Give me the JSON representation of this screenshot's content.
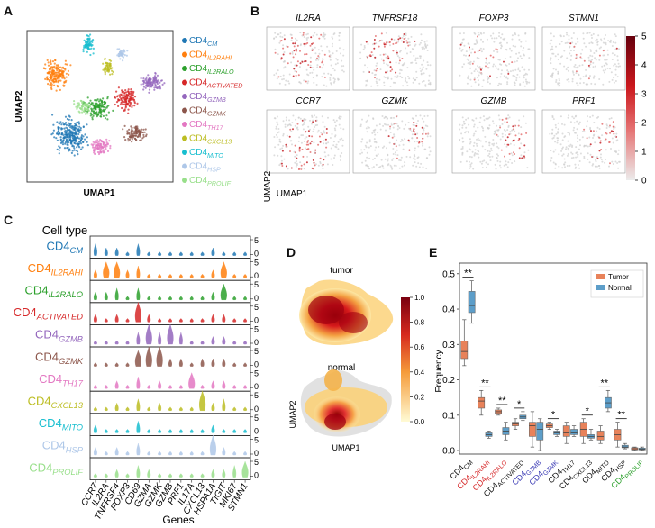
{
  "panels": {
    "a": "A",
    "b": "B",
    "c": "C",
    "d": "D",
    "e": "E"
  },
  "clusters": [
    {
      "name": "CM",
      "color": "#1f77b4"
    },
    {
      "name": "IL2RAHI",
      "color": "#ff7f0e"
    },
    {
      "name": "IL2RALO",
      "color": "#2ca02c"
    },
    {
      "name": "ACTIVATED",
      "color": "#d62728"
    },
    {
      "name": "GZMB",
      "color": "#9467bd"
    },
    {
      "name": "GZMK",
      "color": "#8c564b"
    },
    {
      "name": "TH17",
      "color": "#e377c2"
    },
    {
      "name": "CXCL13",
      "color": "#bcbd22"
    },
    {
      "name": "MITO",
      "color": "#17becf"
    },
    {
      "name": "HSP",
      "color": "#aec7e8"
    },
    {
      "name": "PROLIF",
      "color": "#98df8a"
    }
  ],
  "cd4": "CD4",
  "umap_a": {
    "xlabel": "UMAP1",
    "ylabel": "UMAP2"
  },
  "panel_b": {
    "genes": [
      "IL2RA",
      "TNFRSF18",
      "FOXP3",
      "STMN1",
      "CCR7",
      "GZMK",
      "GZMB",
      "PRF1"
    ],
    "xlabel": "UMAP1",
    "ylabel": "UMAP2",
    "colorbar_ticks": [
      "5",
      "4",
      "3",
      "2",
      "1",
      "0"
    ]
  },
  "panel_c": {
    "title": "Cell type",
    "xlabel": "Genes",
    "genes": [
      "CCR7",
      "IL2RA",
      "TNFRSF4",
      "FOXP3",
      "CD69",
      "GZMA",
      "GZMK",
      "GZMB",
      "PRF1",
      "IL17A",
      "CXCL13",
      "HSPA1A",
      "TIGIT",
      "MKI67",
      "STMN1"
    ],
    "scale_max": "5",
    "scale_min": "0",
    "expression": [
      [
        2,
        1,
        1,
        0,
        2,
        0,
        0,
        0,
        0,
        0,
        0,
        1,
        0,
        0,
        0
      ],
      [
        1,
        3,
        3,
        1,
        2,
        0,
        0,
        0,
        0,
        0,
        0,
        1,
        3,
        0,
        0
      ],
      [
        1,
        1,
        2,
        0,
        2,
        0,
        0,
        0,
        0,
        0,
        0,
        1,
        3,
        0,
        0
      ],
      [
        1,
        0,
        1,
        0,
        4,
        1,
        0,
        0,
        0,
        0,
        0,
        1,
        1,
        0,
        0
      ],
      [
        0,
        0,
        0,
        0,
        2,
        4,
        2,
        4,
        2,
        0,
        0,
        1,
        1,
        0,
        0
      ],
      [
        0,
        0,
        0,
        0,
        3,
        4,
        4,
        1,
        1,
        0,
        1,
        1,
        1,
        0,
        0
      ],
      [
        0,
        0,
        1,
        0,
        2,
        0,
        1,
        0,
        0,
        3,
        0,
        1,
        1,
        0,
        0
      ],
      [
        0,
        0,
        1,
        0,
        2,
        0,
        1,
        0,
        0,
        0,
        4,
        1,
        2,
        0,
        0
      ],
      [
        1,
        0,
        0,
        0,
        2,
        0,
        0,
        0,
        0,
        0,
        0,
        1,
        0,
        0,
        0
      ],
      [
        1,
        0,
        1,
        0,
        2,
        0,
        0,
        0,
        0,
        0,
        0,
        4,
        1,
        0,
        0
      ],
      [
        0,
        0,
        1,
        0,
        2,
        1,
        0,
        0,
        0,
        0,
        0,
        1,
        1,
        2,
        3
      ]
    ]
  },
  "panel_d": {
    "tumor": "tumor",
    "normal": "normal",
    "xlabel": "UMAP1",
    "ylabel": "UMAP2",
    "colorbar_ticks": [
      "1.0",
      "0.8",
      "0.6",
      "0.4",
      "0.2",
      "0.0"
    ]
  },
  "chart_data": {
    "type": "box",
    "ylabel": "Frequency",
    "ylim": [
      -0.01,
      0.53
    ],
    "yticks": [
      "0.0",
      "0.1",
      "0.2",
      "0.3",
      "0.4",
      "0.5"
    ],
    "legend": [
      "Tumor",
      "Normal"
    ],
    "legend_position": "top-right",
    "colors": {
      "Tumor": "#e8825a",
      "Normal": "#5d9ec9"
    },
    "categories": [
      "CM",
      "IL2RAHI",
      "IL2RALO",
      "ACTIVATED",
      "GZMB",
      "GZMK",
      "TH17",
      "CXCL13",
      "MITO",
      "HSP",
      "PROLIF"
    ],
    "category_label_colors": [
      "#111",
      "#d62728",
      "#d62728",
      "#111",
      "#3a3ab5",
      "#3a3ab5",
      "#111",
      "#111",
      "#111",
      "#111",
      "#2ca02c"
    ],
    "significance": [
      "**",
      "**",
      "**",
      "*",
      "",
      "*",
      "",
      "*",
      "**",
      "**",
      ""
    ],
    "series": [
      {
        "name": "Tumor",
        "boxes": [
          [
            0.24,
            0.26,
            0.28,
            0.31,
            0.37
          ],
          [
            0.1,
            0.12,
            0.14,
            0.15,
            0.17
          ],
          [
            0.1,
            0.105,
            0.11,
            0.115,
            0.12
          ],
          [
            0.06,
            0.07,
            0.075,
            0.08,
            0.09
          ],
          [
            0.01,
            0.04,
            0.07,
            0.08,
            0.11
          ],
          [
            0.06,
            0.065,
            0.07,
            0.075,
            0.08
          ],
          [
            0.02,
            0.04,
            0.05,
            0.07,
            0.08
          ],
          [
            0.02,
            0.04,
            0.06,
            0.08,
            0.09
          ],
          [
            0.02,
            0.03,
            0.04,
            0.055,
            0.07
          ],
          [
            0.01,
            0.03,
            0.045,
            0.06,
            0.08
          ],
          [
            0.0,
            0.002,
            0.005,
            0.008,
            0.01
          ]
        ]
      },
      {
        "name": "Normal",
        "boxes": [
          [
            0.36,
            0.39,
            0.41,
            0.45,
            0.48
          ],
          [
            0.035,
            0.04,
            0.045,
            0.05,
            0.055
          ],
          [
            0.03,
            0.045,
            0.055,
            0.065,
            0.08
          ],
          [
            0.085,
            0.09,
            0.095,
            0.1,
            0.11
          ],
          [
            0.0,
            0.03,
            0.06,
            0.08,
            0.09
          ],
          [
            0.04,
            0.045,
            0.05,
            0.055,
            0.06
          ],
          [
            0.04,
            0.045,
            0.05,
            0.06,
            0.07
          ],
          [
            0.03,
            0.035,
            0.04,
            0.045,
            0.06
          ],
          [
            0.11,
            0.12,
            0.135,
            0.15,
            0.17
          ],
          [
            0.005,
            0.008,
            0.01,
            0.015,
            0.02
          ],
          [
            0.0,
            0.002,
            0.004,
            0.007,
            0.01
          ]
        ]
      }
    ]
  }
}
